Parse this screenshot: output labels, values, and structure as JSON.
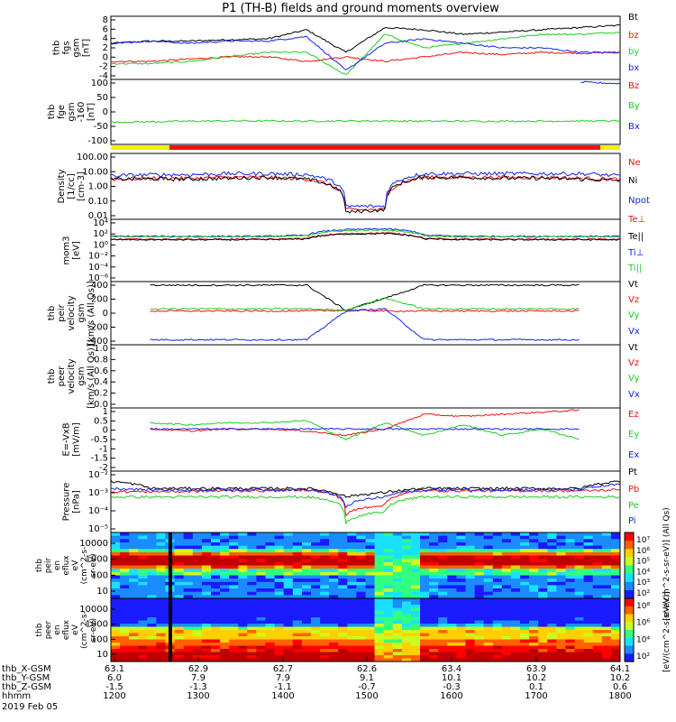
{
  "title": "P1 (TH-B) fields and ground moments overview",
  "colors": {
    "black": "#000000",
    "red": "#ee1111",
    "green": "#22cc22",
    "blue": "#1122ee",
    "yellow": "#f2f200"
  },
  "chart_data": [
    {
      "type": "line",
      "panel": "fgs",
      "ylabel": [
        "thb",
        "fgs",
        "gsm",
        "[nT]"
      ],
      "yticks": [
        "8",
        "6",
        "4",
        "2",
        "0",
        "-2",
        "-4"
      ],
      "ylim": [
        -5,
        9
      ],
      "series": [
        {
          "name": "Bt",
          "color": "#000000",
          "values": [
            3,
            3.5,
            3.5,
            3.8,
            4,
            6,
            1,
            6.5,
            6,
            5,
            5.5,
            6,
            6.5,
            7
          ]
        },
        {
          "name": "bz",
          "color": "#ee1111",
          "values": [
            -1,
            -1,
            -0.5,
            0,
            0,
            -1,
            0,
            -1,
            0,
            1,
            0.5,
            1,
            0.8,
            1
          ]
        },
        {
          "name": "by",
          "color": "#22cc22",
          "values": [
            -1.5,
            -1.5,
            -1,
            0,
            1,
            1,
            -4,
            5,
            2,
            3,
            4,
            5,
            5,
            5.5
          ]
        },
        {
          "name": "bx",
          "color": "#1122ee",
          "values": [
            3,
            3.5,
            3,
            3.5,
            3.5,
            4.5,
            -3,
            3,
            4,
            3,
            2,
            2,
            1,
            1
          ]
        }
      ]
    },
    {
      "type": "line",
      "panel": "fge",
      "ylabel": [
        "thb",
        "fge",
        "gsm",
        "-160",
        "[nT]"
      ],
      "yticks": [
        "100",
        "50",
        "0",
        "-50",
        "-100"
      ],
      "ylim": [
        -130,
        105
      ],
      "series": [
        {
          "name": "Bz",
          "color": "#ee1111",
          "values": []
        },
        {
          "name": "By",
          "color": "#22cc22",
          "values": [
            -50,
            -48,
            -46,
            -45,
            -45,
            -46,
            -45,
            -45,
            -46,
            -46,
            -46,
            -46,
            -45,
            -45
          ]
        },
        {
          "name": "Bx",
          "color": "#1122ee",
          "values": [
            null,
            null,
            null,
            null,
            null,
            null,
            null,
            null,
            null,
            null,
            null,
            null,
            95,
            90
          ]
        }
      ]
    },
    {
      "type": "line",
      "panel": "density",
      "log": true,
      "ylabel": [
        "Density",
        "[1/cc]",
        "[cm-3]"
      ],
      "yticks": [
        "100.00",
        "10.00",
        "1.00",
        "0.10",
        "0.01"
      ],
      "ylim": [
        0.007,
        150
      ],
      "series": [
        {
          "name": "Ne",
          "color": "#ee1111",
          "values": [
            3,
            3.5,
            3.5,
            4,
            4,
            3,
            0.03,
            0.03,
            4,
            4,
            4,
            4,
            3.5,
            3
          ]
        },
        {
          "name": "Ni",
          "color": "#000000",
          "values": [
            3,
            3.2,
            3,
            3.5,
            4,
            3,
            0.02,
            0.03,
            4,
            4,
            3.5,
            3.5,
            3,
            2.5
          ]
        },
        {
          "name": "Npot",
          "color": "#1122ee",
          "values": [
            5,
            6,
            6,
            7,
            7,
            6,
            0.05,
            0.05,
            7,
            7,
            7,
            7,
            7,
            5
          ]
        }
      ]
    },
    {
      "type": "line",
      "panel": "temperature",
      "log": true,
      "ylabel": [
        "mom3",
        "[eV]"
      ],
      "yticks": [
        "10⁴",
        "10²",
        "10⁰",
        "10⁻²",
        "10⁻⁴",
        "10⁻⁶"
      ],
      "ylim": [
        1e-06,
        100000.0
      ],
      "series": [
        {
          "name": "Te⊥",
          "color": "#ee1111",
          "values": [
            30,
            30,
            30,
            30,
            30,
            40,
            300,
            400,
            40,
            30,
            30,
            30,
            30,
            30
          ]
        },
        {
          "name": "Te||",
          "color": "#000000",
          "values": [
            25,
            25,
            25,
            25,
            25,
            35,
            250,
            300,
            35,
            25,
            25,
            25,
            25,
            25
          ]
        },
        {
          "name": "Ti⊥",
          "color": "#1122ee",
          "values": [
            100,
            100,
            100,
            100,
            100,
            150,
            1500,
            2000,
            150,
            100,
            100,
            100,
            100,
            100
          ]
        },
        {
          "name": "Ti||",
          "color": "#22cc22",
          "values": [
            80,
            80,
            80,
            80,
            80,
            120,
            1000,
            1200,
            120,
            80,
            80,
            80,
            80,
            80
          ]
        }
      ]
    },
    {
      "type": "line",
      "panel": "peir-velocity",
      "ylabel": [
        "thb",
        "peir",
        "velocity",
        "gsm",
        "[km/s (All Qs)]"
      ],
      "yticks": [
        "400",
        "200",
        "0",
        "-200",
        "-400"
      ],
      "ylim": [
        -450,
        430
      ],
      "series": [
        {
          "name": "Vt",
          "color": "#000000",
          "values": [
            null,
            380,
            380,
            380,
            380,
            380,
            30,
            200,
            380,
            380,
            380,
            380,
            380,
            null
          ]
        },
        {
          "name": "Vz",
          "color": "#ee1111",
          "values": [
            null,
            20,
            20,
            20,
            20,
            20,
            30,
            20,
            20,
            20,
            20,
            20,
            20,
            null
          ]
        },
        {
          "name": "Vy",
          "color": "#22cc22",
          "values": [
            null,
            50,
            50,
            50,
            50,
            50,
            30,
            200,
            50,
            50,
            50,
            50,
            50,
            null
          ]
        },
        {
          "name": "Vx",
          "color": "#1122ee",
          "values": [
            null,
            -380,
            -380,
            -380,
            -380,
            -380,
            20,
            50,
            -380,
            -380,
            -380,
            -380,
            -380,
            null
          ]
        }
      ]
    },
    {
      "type": "line",
      "panel": "peer-velocity",
      "ylabel": [
        "thb",
        "peer",
        "velocity",
        "gsm",
        "[km/s (All Qs)]"
      ],
      "yticks": [
        "1.0",
        "0.8",
        "0.6",
        "0.4",
        "0.2",
        "0.0"
      ],
      "ylim": [
        0,
        1
      ],
      "series": [
        {
          "name": "Vt",
          "color": "#000000",
          "values": []
        },
        {
          "name": "Vz",
          "color": "#ee1111",
          "values": []
        },
        {
          "name": "Vy",
          "color": "#22cc22",
          "values": []
        },
        {
          "name": "Vx",
          "color": "#1122ee",
          "values": []
        }
      ]
    },
    {
      "type": "line",
      "panel": "efield",
      "ylabel": [
        "E=-VxB",
        "[mV/m]"
      ],
      "yticks": [
        "1",
        "0.5",
        "0",
        "-0.5",
        "-1",
        "-1.5",
        "-2"
      ],
      "ylim": [
        -2,
        1
      ],
      "series": [
        {
          "name": "Ez",
          "color": "#ee1111",
          "values": [
            null,
            0,
            -0.1,
            0,
            0,
            -0.1,
            -0.3,
            0,
            0.7,
            0.6,
            0.7,
            0.8,
            0.9,
            null
          ]
        },
        {
          "name": "Ey",
          "color": "#22cc22",
          "values": [
            null,
            0.3,
            0.2,
            0.3,
            0.3,
            0.4,
            -0.5,
            0.3,
            -0.3,
            0.2,
            -0.3,
            0,
            -0.5,
            null
          ]
        },
        {
          "name": "Ex",
          "color": "#1122ee",
          "values": [
            null,
            0,
            0,
            0,
            0,
            0,
            0,
            0,
            0,
            0,
            0,
            0,
            0,
            null
          ]
        }
      ]
    },
    {
      "type": "line",
      "panel": "pressure",
      "log": true,
      "ylabel": [
        "Pressure",
        "[nPa]"
      ],
      "yticks": [
        "10⁻²",
        "10⁻³",
        "10⁻⁴",
        "10⁻⁵"
      ],
      "ylim": [
        1e-06,
        1
      ],
      "series": [
        {
          "name": "Pt",
          "color": "#000000",
          "values": [
            0.1,
            0.02,
            0.02,
            0.02,
            0.02,
            0.02,
            0.003,
            0.008,
            0.02,
            0.02,
            0.02,
            0.02,
            0.02,
            0.1
          ]
        },
        {
          "name": "Pb",
          "color": "#ee1111",
          "values": [
            0.01,
            0.01,
            0.01,
            0.012,
            0.012,
            0.015,
            5e-05,
            0.0005,
            0.012,
            0.012,
            0.012,
            0.012,
            0.012,
            0.015
          ]
        },
        {
          "name": "Pe",
          "color": "#22cc22",
          "values": [
            0.003,
            0.003,
            0.003,
            0.003,
            0.003,
            0.003,
            1e-05,
            0.0001,
            0.003,
            0.003,
            0.003,
            0.003,
            0.003,
            0.003
          ]
        },
        {
          "name": "Pi",
          "color": "#1122ee",
          "values": [
            0.02,
            0.015,
            0.015,
            0.015,
            0.015,
            0.015,
            0.0003,
            0.003,
            0.015,
            0.015,
            0.015,
            0.015,
            0.015,
            0.05
          ]
        }
      ]
    },
    {
      "type": "heatmap",
      "panel": "peir-spectrogram",
      "ylabel": [
        "thb",
        "peir",
        "en",
        "eflux",
        "eV",
        "(cm^2-s-",
        "sr-eV)"
      ],
      "yticks": [
        "10000",
        "1000",
        "100",
        "10"
      ],
      "colorbar": {
        "label": "[eV/(cm^2-s-sr-eV)] (All Qs)",
        "ticks": [
          "10⁷",
          "10⁶",
          "10⁵",
          "10⁴",
          "10³",
          "10²"
        ]
      }
    },
    {
      "type": "heatmap",
      "panel": "peer-spectrogram",
      "ylabel": [
        "thb",
        "peer",
        "en",
        "eflux",
        "eV",
        "(cm^2-s-",
        "sr-eV)"
      ],
      "yticks": [
        "10000",
        "1000",
        "100",
        "10"
      ],
      "colorbar": {
        "label": "[eV/(cm^2-s-sr-eV)]",
        "ticks": [
          "10⁸",
          "10⁶",
          "10⁴",
          "10²"
        ]
      }
    }
  ],
  "x_axis": {
    "rows": [
      {
        "label": "thb_X-GSM",
        "values": [
          "63.1",
          "62.9",
          "62.7",
          "62.6",
          "63.4",
          "63.9",
          "64.1"
        ]
      },
      {
        "label": "thb_Y-GSM",
        "values": [
          "6.0",
          "7.9",
          "7.9",
          "9.1",
          "10.1",
          "10.2",
          "10.2"
        ]
      },
      {
        "label": "thb_Z-GSM",
        "values": [
          "-1.5",
          "-1.3",
          "-1.1",
          "-0.7",
          "-0.3",
          "0.1",
          "0.6"
        ]
      },
      {
        "label": "hhmm",
        "values": [
          "1200",
          "1300",
          "1400",
          "1500",
          "1600",
          "1700",
          "1800"
        ]
      }
    ],
    "date": "2019 Feb 05"
  }
}
